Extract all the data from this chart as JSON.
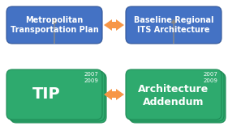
{
  "bg_color": "#ffffff",
  "top_left_text": "Metropolitan\nTransportation Plan",
  "top_right_text": "Baseline Regional\nITS Architecture",
  "bottom_left_main": "TIP",
  "bottom_right_main": "Architecture\nAddendum",
  "bottom_left_years": "2007\n2009",
  "bottom_right_years": "2007\n2009",
  "blue_box_color": "#4472C4",
  "blue_box_edge": "#2F5496",
  "green_box_color": "#2EAA6E",
  "green_box_edge": "#1E8A55",
  "green_shadow_color": "#1E8A55",
  "orange_arrow_color": "#F79646",
  "gray_arrow_color": "#888888",
  "white_text": "#FFFFFF",
  "year_text_color": "#FFFFFF"
}
